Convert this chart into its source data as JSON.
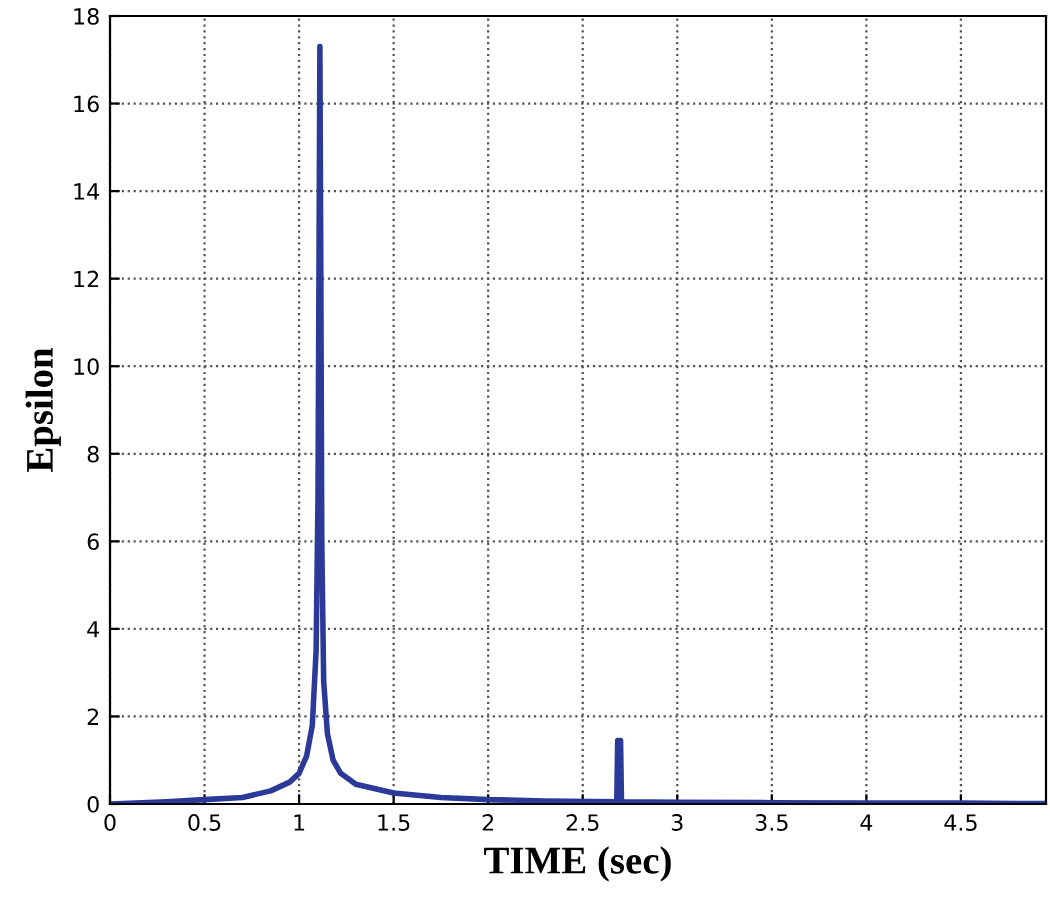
{
  "chart_data": {
    "type": "line",
    "xlabel": "TIME (sec)",
    "ylabel": "Epsilon",
    "series": [
      {
        "color": "#2b3a98",
        "x": [
          0,
          0.3,
          0.5,
          0.7,
          0.85,
          0.95,
          1.0,
          1.04,
          1.07,
          1.09,
          1.1,
          1.105,
          1.11,
          1.115,
          1.12,
          1.13,
          1.15,
          1.18,
          1.22,
          1.3,
          1.5,
          1.75,
          2.0,
          2.3,
          2.68,
          2.685,
          2.7,
          2.705,
          3.0,
          3.5,
          4.0,
          4.5,
          4.95
        ],
        "values": [
          0.0,
          0.05,
          0.1,
          0.15,
          0.3,
          0.5,
          0.7,
          1.1,
          1.8,
          3.5,
          7,
          12,
          17.3,
          12,
          6,
          2.8,
          1.6,
          1.0,
          0.7,
          0.45,
          0.25,
          0.15,
          0.1,
          0.07,
          0.05,
          1.45,
          1.45,
          0.05,
          0.04,
          0.03,
          0.02,
          0.02,
          0.01
        ]
      }
    ],
    "xlim": [
      0,
      4.95
    ],
    "ylim": [
      0,
      18
    ],
    "xticks": [
      0,
      0.5,
      1,
      1.5,
      2,
      2.5,
      3,
      3.5,
      4,
      4.5
    ],
    "yticks": [
      0,
      2,
      4,
      6,
      8,
      10,
      12,
      14,
      16,
      18
    ],
    "grid": true,
    "legend": false,
    "marker": "none",
    "line_style": "solid"
  }
}
